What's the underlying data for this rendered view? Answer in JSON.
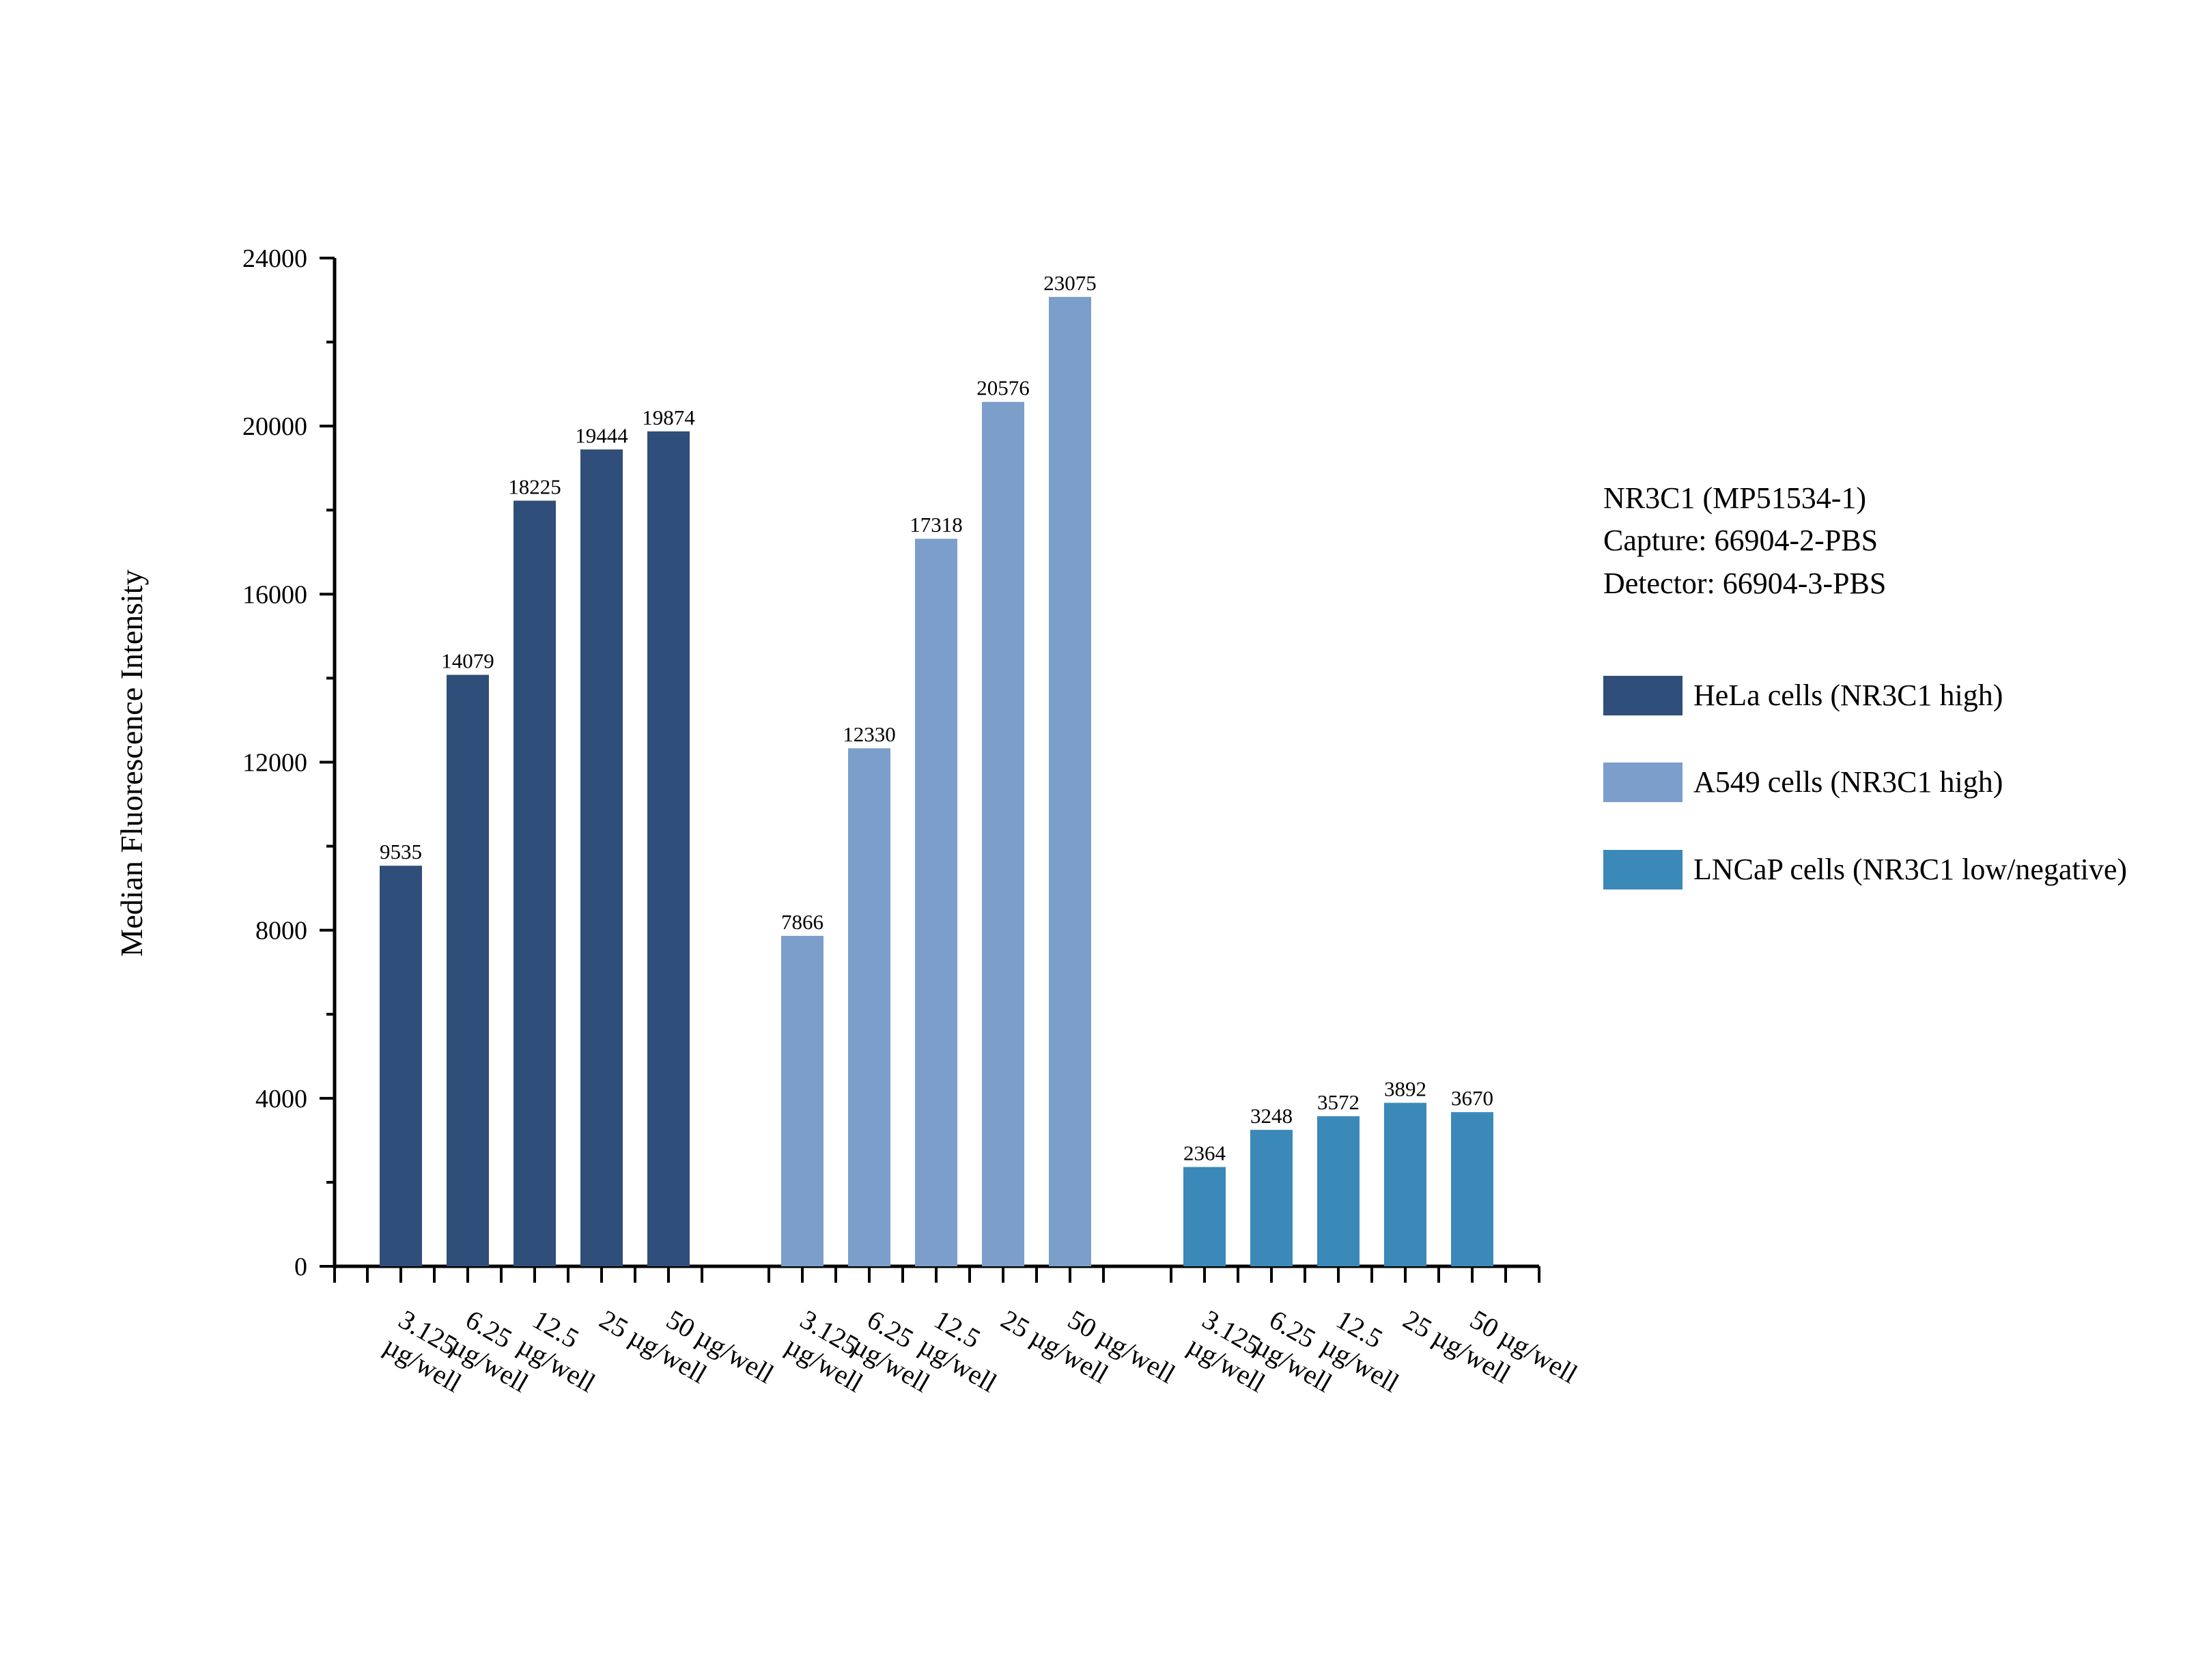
{
  "chart_data": {
    "type": "bar",
    "ylabel": "Median Fluorescence Intensity",
    "xlabel": "",
    "ylim": [
      0,
      24000
    ],
    "yticks": [
      0,
      4000,
      8000,
      12000,
      16000,
      20000,
      24000
    ],
    "ytick_labels": [
      "0",
      "4000",
      "8000",
      "12000",
      "16000",
      "20000",
      "24000"
    ],
    "grid": false,
    "legend_position": "right",
    "legend_title_lines": [
      "NR3C1 (MP51534-1)",
      "Capture: 66904-2-PBS",
      "Detector: 66904-3-PBS"
    ],
    "categories": [
      "3.125 µg/well",
      "6.25 µg/well",
      "12.5 µg/well",
      "25 µg/well",
      "50 µg/well"
    ],
    "series": [
      {
        "name": "HeLa cells (NR3C1 high)",
        "color": "#2f4e79",
        "values": [
          9535,
          14079,
          18225,
          19444,
          19874
        ]
      },
      {
        "name": "A549 cells (NR3C1 high)",
        "color": "#7b9ecb",
        "values": [
          7866,
          12330,
          17318,
          20576,
          23075
        ]
      },
      {
        "name": "LNCaP cells (NR3C1 low/negative)",
        "color": "#3a89b9",
        "values": [
          2364,
          3248,
          3572,
          3892,
          3670
        ]
      }
    ]
  }
}
